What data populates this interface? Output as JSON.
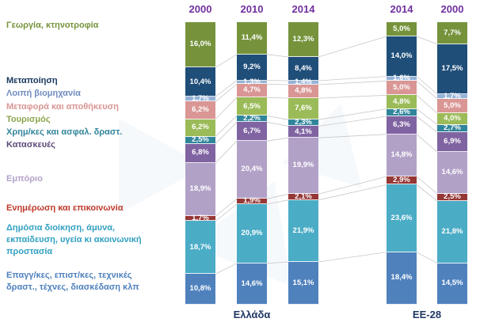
{
  "colors": {
    "year_header": "#7030a0",
    "group_label": "#1f3864",
    "connector_line": "#c8c8c8",
    "watermark": "#9dc3e6"
  },
  "chart_data": {
    "type": "bar",
    "stacked": true,
    "unit": "%",
    "value_label_format": "comma_decimal_percent",
    "group_labels": [
      "Ελλάδα",
      "ΕΕ-28"
    ],
    "categories": [
      {
        "label": "Γεωργία, κτηνοτροφία",
        "color": "#76933c",
        "label_color": "#76933c"
      },
      {
        "label": "Μεταποίηση",
        "color": "#1f4e79",
        "label_color": "#17375e"
      },
      {
        "label": "Λοιπή βιομηχανία",
        "color": "#95b3d7",
        "label_color": "#6f8cbf"
      },
      {
        "label": "Μεταφορά και αποθήκευση",
        "color": "#d99694",
        "label_color": "#d99694"
      },
      {
        "label": "Τουρισμός",
        "color": "#9bbb59",
        "label_color": "#8ca64d"
      },
      {
        "label": "Χρημ/κες και ασφαλ. δραστ.",
        "color": "#31859b",
        "label_color": "#31859b"
      },
      {
        "label": "Κατασκευές",
        "color": "#8064a2",
        "label_color": "#604a7b"
      },
      {
        "label": "Εμπόριο",
        "color": "#b2a1c7",
        "label_color": "#b2a1c7"
      },
      {
        "label": "Ενημέρωση και επικοινωνία",
        "color": "#953735",
        "label_color": "#c0392b"
      },
      {
        "label": "Δημόσια διοίκηση, άμυνα,\nεκπαίδευση, υγεία κι ακοινωνική\nπροστασία",
        "color": "#4bacc6",
        "label_color": "#31a0c0"
      },
      {
        "label": "Επαγγ/κες, επιστ/κες, τεχνικές\nδραστ., τέχνες, διασκέδαση κλπ",
        "color": "#4f81bd",
        "label_color": "#4f81bd"
      }
    ],
    "series": [
      {
        "year": "2000",
        "group": "Ελλάδα",
        "values": [
          16.0,
          10.4,
          1.7,
          6.2,
          6.2,
          2.5,
          6.8,
          18.9,
          1.7,
          18.7,
          10.8
        ]
      },
      {
        "year": "2010",
        "group": "Ελλάδα",
        "values": [
          11.4,
          9.2,
          1.3,
          4.7,
          6.5,
          2.2,
          6.7,
          20.4,
          1.9,
          20.9,
          14.6
        ]
      },
      {
        "year": "2014",
        "group": "Ελλάδα",
        "values": [
          12.3,
          8.4,
          1.4,
          4.8,
          7.6,
          2.3,
          4.1,
          19.9,
          2.1,
          21.9,
          15.1
        ]
      },
      {
        "year": "2014",
        "group": "ΕΕ-28",
        "values": [
          5.0,
          14.0,
          1.6,
          5.0,
          4.8,
          2.6,
          6.3,
          14.8,
          2.9,
          23.6,
          18.4
        ]
      },
      {
        "year": "2000",
        "group": "ΕΕ-28",
        "values": [
          7.7,
          17.5,
          1.7,
          5.0,
          4.0,
          2.7,
          6.9,
          14.6,
          2.5,
          21.8,
          14.5
        ]
      }
    ]
  }
}
